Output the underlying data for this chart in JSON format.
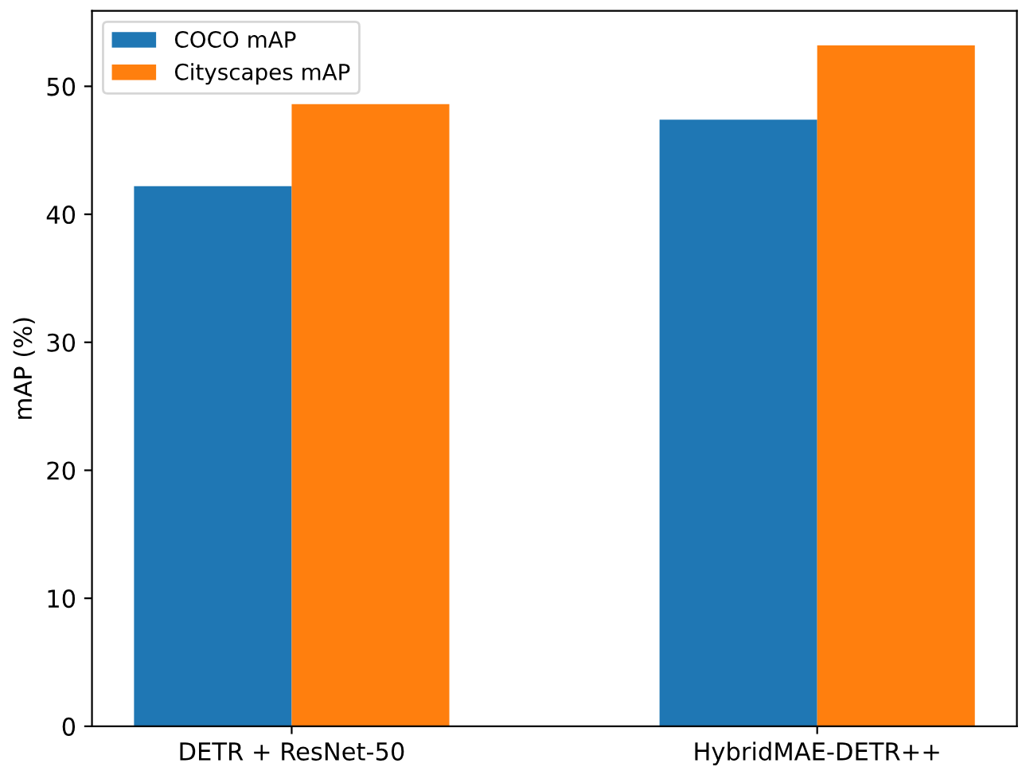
{
  "chart_data": {
    "type": "bar",
    "ylabel": "mAP (%)",
    "categories": [
      "DETR + ResNet-50",
      "HybridMAE-DETR++"
    ],
    "series": [
      {
        "name": "COCO mAP",
        "color": "#1f77b4",
        "values": [
          42.2,
          47.4
        ]
      },
      {
        "name": "Cityscapes mAP",
        "color": "#ff7f0e",
        "values": [
          48.6,
          53.2
        ]
      }
    ],
    "ylim": [
      0,
      55.9
    ],
    "yticks": [
      0,
      10,
      20,
      30,
      40,
      50
    ],
    "grid": false,
    "legend": "top left"
  }
}
